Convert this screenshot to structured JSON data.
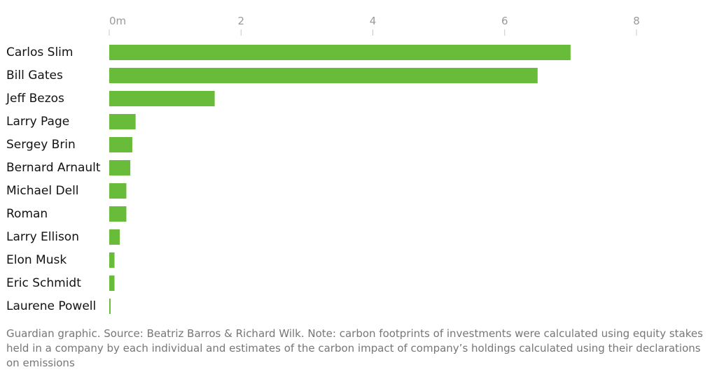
{
  "chart_data": {
    "type": "bar",
    "orientation": "horizontal",
    "categories": [
      "Carlos Slim",
      "Bill Gates",
      "Jeff Bezos",
      "Larry Page",
      "Sergey Brin",
      "Bernard Arnault",
      "Michael Dell",
      "Roman",
      "Larry Ellison",
      "Elon Musk",
      "Eric Schmidt",
      "Laurene Powell"
    ],
    "values": [
      7.0,
      6.5,
      1.6,
      0.4,
      0.35,
      0.32,
      0.26,
      0.26,
      0.16,
      0.08,
      0.08,
      0.02
    ],
    "xlim": [
      0,
      8
    ],
    "xticks": [
      0,
      2,
      4,
      6,
      8
    ],
    "xtick_labels": [
      "0m",
      "2",
      "4",
      "6",
      "8"
    ],
    "xaxis_position": "top",
    "grid": false,
    "bar_color": "#69bb3a"
  },
  "footnote": "Guardian graphic. Source: Beatriz Barros & Richard Wilk. Note: carbon footprints of investments were calculated using equity stakes held in a company by each individual and estimates of the carbon impact of company’s holdings calculated using their declarations on emissions"
}
